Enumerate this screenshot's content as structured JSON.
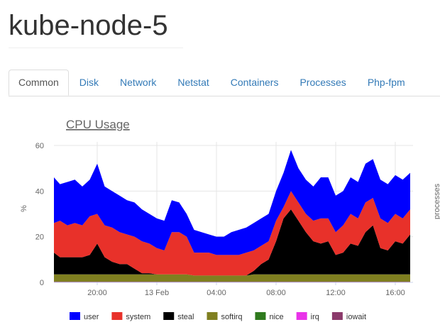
{
  "header": {
    "title": "kube-node-5"
  },
  "tabs": [
    {
      "label": "Common",
      "active": true
    },
    {
      "label": "Disk"
    },
    {
      "label": "Network"
    },
    {
      "label": "Netstat"
    },
    {
      "label": "Containers"
    },
    {
      "label": "Processes"
    },
    {
      "label": "Php-fpm"
    }
  ],
  "chart_data": {
    "type": "area",
    "stacked": true,
    "title": "CPU Usage",
    "ylabel": "%",
    "y2label": "processes",
    "ylim": [
      0,
      60
    ],
    "yticks": [
      0,
      20,
      40,
      60
    ],
    "xticks": [
      {
        "h": 3,
        "label": "20:00"
      },
      {
        "h": 7,
        "label": "13 Feb"
      },
      {
        "h": 11,
        "label": "04:00"
      },
      {
        "h": 15,
        "label": "08:00"
      },
      {
        "h": 19,
        "label": "12:00"
      },
      {
        "h": 23,
        "label": "16:00"
      }
    ],
    "x_hours_from_1700_12Feb": [
      0,
      0.5,
      1,
      1.5,
      2,
      2.5,
      3,
      3.5,
      4,
      4.5,
      5,
      5.5,
      6,
      6.5,
      7,
      7.5,
      8,
      8.5,
      9,
      9.5,
      10,
      10.5,
      11,
      11.5,
      12,
      12.5,
      13,
      13.5,
      14,
      14.5,
      15,
      15.5,
      16,
      16.5,
      17,
      17.5,
      18,
      18.5,
      19,
      19.5,
      20,
      20.5,
      21,
      21.5,
      22,
      22.5,
      23,
      23.5,
      24
    ],
    "legend_position": "bottom",
    "series": [
      {
        "name": "iowait",
        "color": "#8b3a6b",
        "values": [
          0.3,
          0.3,
          0.3,
          0.3,
          0.3,
          0.3,
          0.3,
          0.3,
          0.3,
          0.3,
          0.3,
          0.3,
          0.3,
          0.3,
          0.3,
          0.3,
          0.3,
          0.3,
          0.3,
          0.3,
          0.3,
          0.3,
          0.3,
          0.3,
          0.3,
          0.3,
          0.3,
          0.3,
          0.3,
          0.3,
          0.3,
          0.3,
          0.3,
          0.3,
          0.3,
          0.3,
          0.3,
          0.3,
          0.3,
          0.3,
          0.3,
          0.3,
          0.3,
          0.3,
          0.3,
          0.3,
          0.3,
          0.3,
          0.3
        ]
      },
      {
        "name": "irq",
        "color": "#e933e9",
        "values": [
          0,
          0,
          0,
          0,
          0,
          0,
          0,
          0,
          0,
          0,
          0,
          0,
          0,
          0,
          0,
          0,
          0,
          0,
          0,
          0,
          0,
          0,
          0,
          0,
          0,
          0,
          0,
          0,
          0,
          0,
          0,
          0,
          0,
          0,
          0,
          0,
          0,
          0,
          0,
          0,
          0,
          0,
          0,
          0,
          0,
          0,
          0,
          0,
          0
        ]
      },
      {
        "name": "nice",
        "color": "#2f7a1e",
        "values": [
          0,
          0,
          0,
          0,
          0,
          0,
          0,
          0,
          0,
          0,
          0,
          0,
          0,
          0,
          0,
          0,
          0,
          0,
          0,
          0,
          0,
          0,
          0,
          0,
          0,
          0,
          0,
          0,
          0,
          0,
          0,
          0,
          0,
          0,
          0,
          0,
          0,
          0,
          0,
          0,
          0,
          0,
          0,
          0,
          0,
          0,
          0,
          0,
          0
        ]
      },
      {
        "name": "softirq",
        "color": "#7f7f20",
        "values": [
          3.2,
          3.2,
          3.2,
          3.2,
          3.2,
          3.2,
          3.2,
          3.2,
          3.2,
          3.2,
          3.2,
          3.2,
          3.2,
          3.2,
          3.2,
          3.2,
          3.2,
          3.2,
          3.2,
          2.7,
          2.7,
          2.7,
          2.7,
          2.7,
          2.7,
          2.7,
          2.7,
          3.2,
          3.2,
          3.2,
          3.2,
          3.2,
          3.2,
          3.2,
          3.2,
          3.2,
          3.2,
          3.2,
          3.2,
          3.2,
          3.2,
          3.2,
          3.2,
          3.2,
          3.2,
          3.2,
          3.2,
          3.2,
          3.2
        ]
      },
      {
        "name": "steal",
        "color": "#000000",
        "values": [
          9.5,
          7.5,
          7.5,
          7.5,
          7.5,
          8.5,
          13.5,
          7.5,
          5.5,
          4.5,
          4.5,
          2.5,
          0.5,
          0.5,
          0,
          0,
          0,
          0,
          0,
          0,
          0,
          0,
          0,
          0,
          0,
          0,
          0,
          1.5,
          4.5,
          6.5,
          14.5,
          24.5,
          28.5,
          23.5,
          18.5,
          14.5,
          13.5,
          14.5,
          8.5,
          9.5,
          13.5,
          12.5,
          18.5,
          21.5,
          11.5,
          10.5,
          14.5,
          13.5,
          17.5
        ]
      },
      {
        "name": "system",
        "color": "#e8312a",
        "values": [
          13,
          16,
          14,
          15,
          14,
          17,
          13,
          14,
          15,
          14,
          13,
          14,
          14,
          13,
          11.5,
          10.5,
          18.5,
          18.5,
          16.5,
          10,
          10,
          10,
          9,
          9,
          9,
          9,
          10,
          9,
          8,
          8,
          9,
          5,
          8,
          8,
          8,
          9,
          11,
          10,
          10,
          12,
          13,
          12,
          13,
          12,
          13,
          12,
          12,
          11,
          11
        ]
      },
      {
        "name": "user",
        "color": "#0000ff",
        "values": [
          20,
          16,
          19,
          19,
          17,
          16,
          22,
          17,
          16,
          16,
          15,
          15,
          14,
          13,
          13,
          13,
          14,
          13,
          10,
          10,
          9,
          8,
          8,
          8,
          10,
          11,
          11,
          12,
          12,
          12,
          13,
          15,
          18,
          15,
          15,
          15,
          18,
          18,
          16,
          15,
          16,
          16,
          17,
          17,
          17,
          17,
          17,
          17,
          16
        ]
      }
    ],
    "legend_order": [
      "user",
      "system",
      "steal",
      "softirq",
      "nice",
      "irq",
      "iowait"
    ]
  }
}
